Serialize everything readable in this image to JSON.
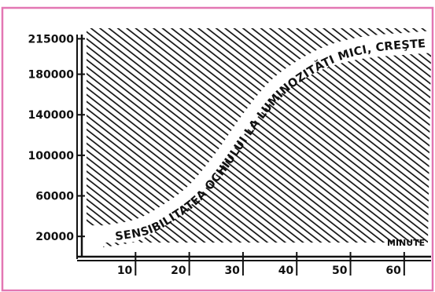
{
  "chart_data": {
    "type": "area",
    "title": "",
    "xlabel": "MINUTE",
    "ylabel": "",
    "x_ticks": [
      "10",
      "20",
      "30",
      "40",
      "50",
      "60"
    ],
    "y_ticks": [
      "215000",
      "180000",
      "140000",
      "100000",
      "60000",
      "20000"
    ],
    "annotation": "SENSIBILITATEA OCHIULUI LA LUMINOZITĂŢI MICI, CREŞTE",
    "xlim": [
      0,
      65
    ],
    "ylim": [
      0,
      230000
    ],
    "series": [
      {
        "x": [
          4,
          10,
          15,
          20,
          25,
          30,
          35,
          40,
          45,
          50,
          55,
          60,
          65
        ],
        "values": [
          20000,
          26000,
          40000,
          60000,
          92000,
          130000,
          162000,
          182000,
          196000,
          204000,
          208000,
          210000,
          212000
        ]
      }
    ],
    "grid": false,
    "colors": {
      "border": "#e377b3",
      "ink": "#111111",
      "paper": "#ffffff"
    }
  }
}
